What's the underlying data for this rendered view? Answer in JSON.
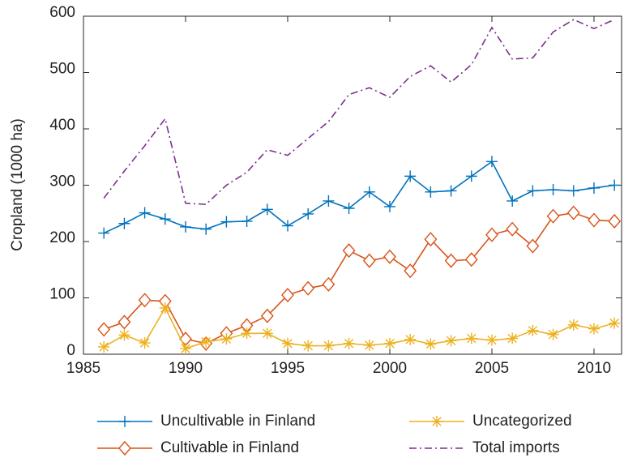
{
  "chart_data": {
    "type": "line",
    "y_label": "Cropland (1000 ha)",
    "x": [
      1986,
      1987,
      1988,
      1989,
      1990,
      1991,
      1992,
      1993,
      1994,
      1995,
      1996,
      1997,
      1998,
      1999,
      2000,
      2001,
      2002,
      2003,
      2004,
      2005,
      2006,
      2007,
      2008,
      2009,
      2010,
      2011
    ],
    "series": [
      {
        "name": "Uncultivable in Finland",
        "color": "#0072bd",
        "marker": "plus",
        "linestyle": "solid",
        "values": [
          215,
          232,
          251,
          240,
          226,
          222,
          235,
          236,
          257,
          228,
          249,
          272,
          259,
          288,
          262,
          316,
          288,
          290,
          316,
          342,
          272,
          290,
          292,
          290,
          295,
          300
        ]
      },
      {
        "name": "Cultivable in Finland",
        "color": "#d95319",
        "marker": "diamond",
        "linestyle": "solid",
        "values": [
          44,
          57,
          96,
          94,
          27,
          19,
          37,
          51,
          68,
          105,
          117,
          124,
          184,
          166,
          173,
          148,
          204,
          166,
          168,
          212,
          222,
          192,
          245,
          251,
          238,
          236
        ]
      },
      {
        "name": "Uncategorized",
        "color": "#edb120",
        "marker": "star",
        "linestyle": "solid",
        "values": [
          13,
          34,
          20,
          82,
          10,
          22,
          27,
          37,
          37,
          19,
          15,
          15,
          19,
          16,
          19,
          26,
          18,
          24,
          28,
          25,
          28,
          42,
          35,
          52,
          45,
          55
        ]
      },
      {
        "name": "Total imports",
        "color": "#7e2f8e",
        "marker": "none",
        "linestyle": "dashdot",
        "values": [
          277,
          325,
          370,
          418,
          268,
          266,
          300,
          323,
          363,
          353,
          383,
          413,
          461,
          473,
          456,
          493,
          512,
          483,
          514,
          580,
          524,
          526,
          572,
          594,
          578,
          594
        ]
      }
    ],
    "xlim": [
      1985,
      2011.35
    ],
    "xticks": [
      1985,
      1990,
      1995,
      2000,
      2005,
      2010
    ],
    "ylim": [
      0,
      600
    ],
    "yticks": [
      0,
      100,
      200,
      300,
      400,
      500,
      600
    ],
    "grid": false,
    "legend": "below"
  }
}
